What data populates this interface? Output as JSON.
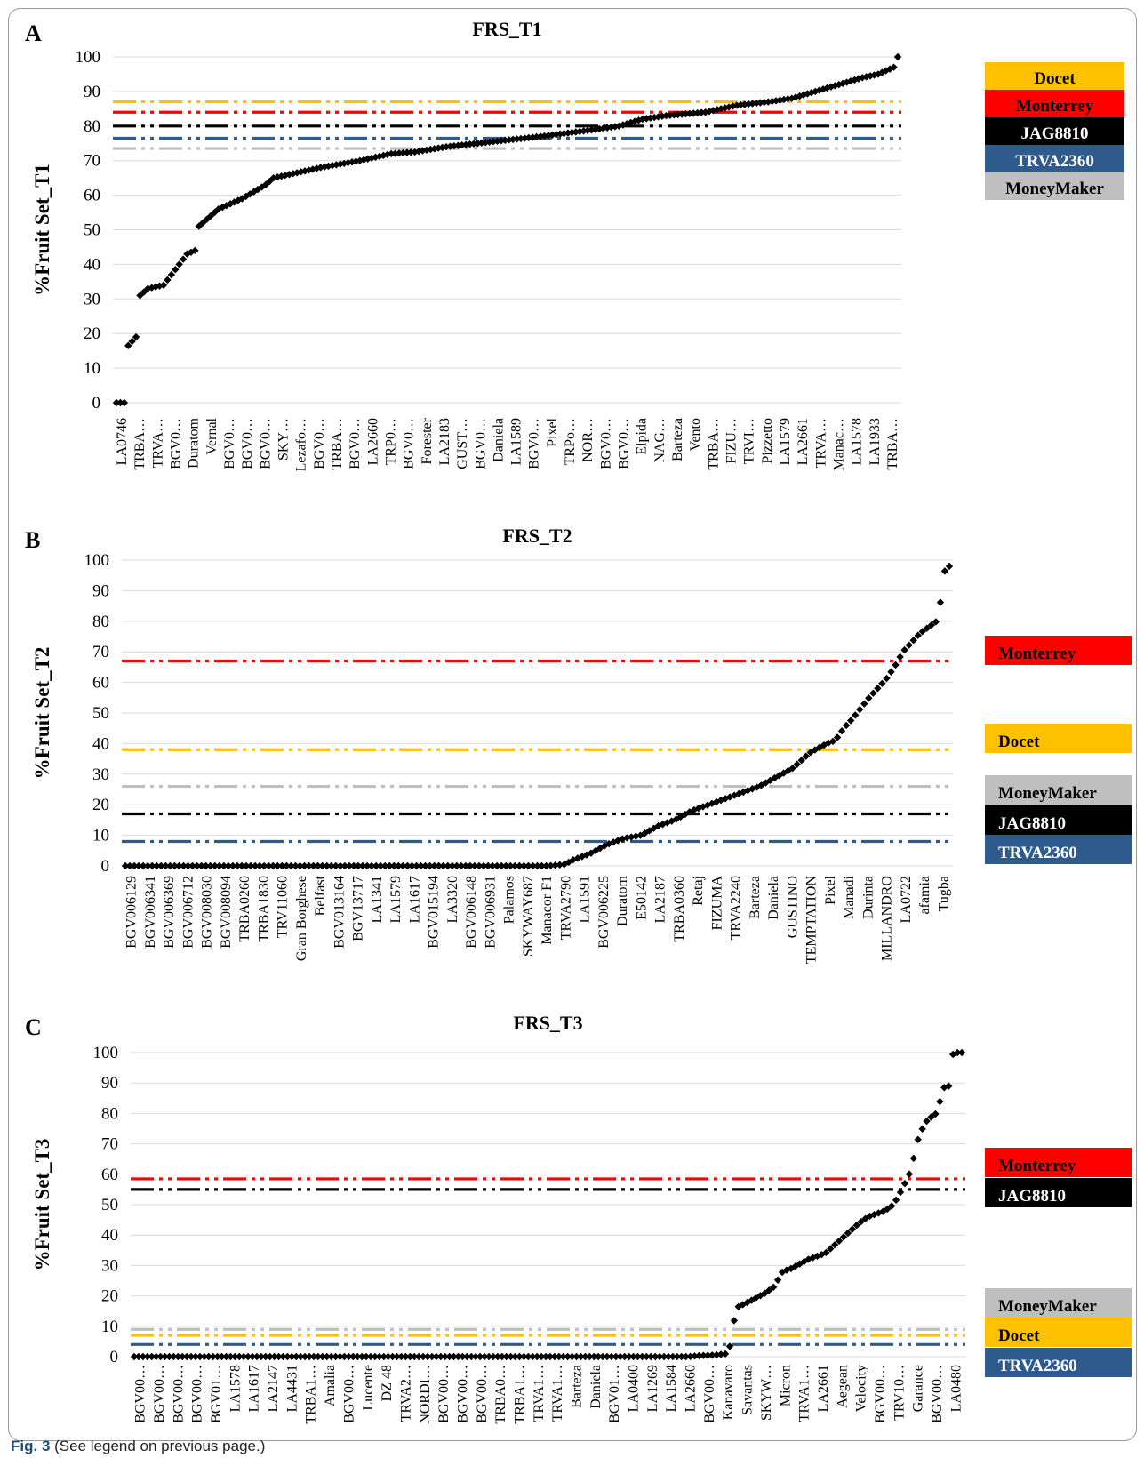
{
  "caption": {
    "label": "Fig. 3",
    "text": "(See legend on previous page.)"
  },
  "colors": {
    "Docet": "#FFC000",
    "Monterrey": "#FF0000",
    "JAG8810": "#000000",
    "TRVA2360": "#2E5A8E",
    "MoneyMaker": "#BFBFBF",
    "points": "#000000"
  },
  "chart_data": [
    {
      "panel": "A",
      "type": "scatter",
      "title": "FRS_T1",
      "ylabel": "%Fruit Set_T1",
      "ylim": [
        0,
        100
      ],
      "yticks": [
        0,
        10,
        20,
        30,
        40,
        50,
        60,
        70,
        80,
        90,
        100
      ],
      "n_points": 200,
      "curve_knots": [
        [
          0,
          0
        ],
        [
          2,
          0
        ],
        [
          3,
          16.5
        ],
        [
          5,
          19
        ],
        [
          6,
          31
        ],
        [
          8,
          33
        ],
        [
          12,
          34
        ],
        [
          18,
          43
        ],
        [
          20,
          44
        ],
        [
          21,
          51
        ],
        [
          23,
          53
        ],
        [
          26,
          56
        ],
        [
          32,
          59
        ],
        [
          38,
          63
        ],
        [
          40,
          65
        ],
        [
          44,
          66
        ],
        [
          52,
          68
        ],
        [
          62,
          70
        ],
        [
          70,
          72
        ],
        [
          76,
          72.5
        ],
        [
          84,
          74
        ],
        [
          92,
          75
        ],
        [
          100,
          76
        ],
        [
          108,
          77
        ],
        [
          115,
          78
        ],
        [
          122,
          79
        ],
        [
          128,
          80
        ],
        [
          134,
          82
        ],
        [
          140,
          83
        ],
        [
          150,
          84
        ],
        [
          158,
          86
        ],
        [
          166,
          87
        ],
        [
          172,
          88
        ],
        [
          178,
          90
        ],
        [
          184,
          92
        ],
        [
          190,
          94
        ],
        [
          194,
          95
        ],
        [
          196,
          96
        ],
        [
          198,
          97
        ],
        [
          199,
          100
        ]
      ],
      "categories": [
        "LA0746",
        "TRBA…",
        "TRVA…",
        "BGV0…",
        "Duratom",
        "Vernal",
        "BGV0…",
        "BGV0…",
        "BGV0…",
        "SKY…",
        "Lezafo…",
        "BGV0…",
        "TRBA…",
        "BGV0…",
        "LA2660",
        "TRP0…",
        "BGV0…",
        "Forester",
        "LA2183",
        "GUST…",
        "BGV0…",
        "Daniela",
        "LA1589",
        "BGV0…",
        "Pixel",
        "TRPo…",
        "NOR…",
        "BGV0…",
        "BGV0…",
        "Elpida",
        "NAG…",
        "Barteza",
        "Vento",
        "TRBA…",
        "FIZU…",
        "TRVI…",
        "Pizzetto",
        "LA1579",
        "LA2661",
        "TRVA…",
        "Manac…",
        "LA1578",
        "LA1933",
        "TRBA…"
      ],
      "reference_lines": [
        {
          "name": "Docet",
          "value": 87
        },
        {
          "name": "Monterrey",
          "value": 84
        },
        {
          "name": "JAG8810",
          "value": 80
        },
        {
          "name": "TRVA2360",
          "value": 76.5
        },
        {
          "name": "MoneyMaker",
          "value": 73.5
        }
      ],
      "legend": [
        {
          "name": "Docet",
          "fg": "#000000"
        },
        {
          "name": "Monterrey",
          "fg": "#000000"
        },
        {
          "name": "JAG8810",
          "fg": "#ffffff"
        },
        {
          "name": "TRVA2360",
          "fg": "#ffffff"
        },
        {
          "name": "MoneyMaker",
          "fg": "#000000"
        }
      ]
    },
    {
      "panel": "B",
      "type": "scatter",
      "title": "FRS_T2",
      "ylabel": "%Fruit Set_T2",
      "ylim": [
        0,
        100
      ],
      "yticks": [
        0,
        10,
        20,
        30,
        40,
        50,
        60,
        70,
        80,
        90,
        100
      ],
      "n_points": 185,
      "curve_knots": [
        [
          0,
          0
        ],
        [
          100,
          0
        ],
        [
          104,
          0.5
        ],
        [
          106,
          2
        ],
        [
          110,
          4
        ],
        [
          114,
          7
        ],
        [
          118,
          9
        ],
        [
          122,
          10
        ],
        [
          126,
          13
        ],
        [
          130,
          15
        ],
        [
          134,
          18
        ],
        [
          138,
          20
        ],
        [
          142,
          22
        ],
        [
          146,
          24
        ],
        [
          150,
          26
        ],
        [
          154,
          29
        ],
        [
          158,
          32
        ],
        [
          162,
          37
        ],
        [
          166,
          40
        ],
        [
          168,
          41
        ],
        [
          170,
          45
        ],
        [
          172,
          48
        ],
        [
          176,
          55
        ],
        [
          180,
          61
        ],
        [
          182,
          65
        ],
        [
          184,
          70
        ],
        [
          186,
          73
        ],
        [
          188,
          76
        ],
        [
          190,
          78
        ],
        [
          192,
          80
        ],
        [
          193,
          87
        ],
        [
          194,
          97
        ],
        [
          195,
          98
        ]
      ],
      "categories": [
        "BGV006129",
        "BGV006341",
        "BGV006369",
        "BGV006712",
        "BGV008030",
        "BGV008094",
        "TRBA0260",
        "TRBA1830",
        "TRV11060",
        "Gran Borghese",
        "Belfast",
        "BGV013164",
        "BGV13717",
        "LA1341",
        "LA1579",
        "LA1617",
        "BGV015194",
        "LA3320",
        "BGV006148",
        "BGV006931",
        "Palamos",
        "SKYWAY687",
        "Manacor F1",
        "TRVA2790",
        "LA1591",
        "BGV006225",
        "Duratom",
        "E50142",
        "LA2187",
        "TRBA0360",
        "Retaj",
        "FIZUMA",
        "TRVA2240",
        "Barteza",
        "Daniela",
        "GUSTINO",
        "TEMPTATION",
        "Pixel",
        "Manadi",
        "Durinta",
        "MILLANDRO",
        "LA0722",
        "afamia",
        "Tugba"
      ],
      "reference_lines": [
        {
          "name": "Monterrey",
          "value": 67
        },
        {
          "name": "Docet",
          "value": 38
        },
        {
          "name": "MoneyMaker",
          "value": 26
        },
        {
          "name": "JAG8810",
          "value": 17
        },
        {
          "name": "TRVA2360",
          "value": 8
        }
      ],
      "legend": [
        {
          "name": "Monterrey",
          "fg": "#000000"
        },
        {
          "name": "Docet",
          "fg": "#000000"
        },
        {
          "name": "MoneyMaker",
          "fg": "#000000"
        },
        {
          "name": "JAG8810",
          "fg": "#ffffff"
        },
        {
          "name": "TRVA2360",
          "fg": "#ffffff"
        }
      ]
    },
    {
      "panel": "C",
      "type": "scatter",
      "title": "FRS_T3",
      "ylabel": "%Fruit Set_T3",
      "ylim": [
        0,
        100
      ],
      "yticks": [
        0,
        10,
        20,
        30,
        40,
        50,
        60,
        70,
        80,
        90,
        100
      ],
      "n_points": 190,
      "curve_knots": [
        [
          0,
          0
        ],
        [
          130,
          0
        ],
        [
          132,
          0.3
        ],
        [
          136,
          0.5
        ],
        [
          139,
          1
        ],
        [
          140,
          5
        ],
        [
          141,
          16
        ],
        [
          144,
          18
        ],
        [
          148,
          21
        ],
        [
          150,
          23
        ],
        [
          152,
          28
        ],
        [
          154,
          29
        ],
        [
          158,
          32
        ],
        [
          162,
          34
        ],
        [
          166,
          39
        ],
        [
          170,
          44
        ],
        [
          172,
          46
        ],
        [
          176,
          48
        ],
        [
          178,
          50
        ],
        [
          180,
          55
        ],
        [
          182,
          61
        ],
        [
          184,
          73
        ],
        [
          186,
          78
        ],
        [
          188,
          80
        ],
        [
          190,
          89
        ],
        [
          191,
          89
        ],
        [
          192,
          100
        ],
        [
          194,
          100
        ]
      ],
      "categories": [
        "BGV00…",
        "BGV00…",
        "BGV00…",
        "BGV00…",
        "BGV01…",
        "LA1578",
        "LA1617",
        "LA2147",
        "LA4431",
        "TRBA1…",
        "Amalia",
        "BGV00…",
        "Lucente",
        "DZ 48",
        "TRVA2…",
        "NORDI…",
        "BGV00…",
        "BGV00…",
        "BGV00…",
        "TRBA0…",
        "TRBA1…",
        "TRVA1…",
        "TRVA1…",
        "Barteza",
        "Daniela",
        "BGV01…",
        "LA0400",
        "LA1269",
        "LA1584",
        "LA2660",
        "BGV00…",
        "Kanavaro",
        "Savantas",
        "SKYW…",
        "Micron",
        "TRVA1…",
        "LA2661",
        "Aegean",
        "Velocity",
        "BGV00…",
        "TRV10…",
        "Garance",
        "BGV00…",
        "LA0480"
      ],
      "reference_lines": [
        {
          "name": "Monterrey",
          "value": 58.5
        },
        {
          "name": "JAG8810",
          "value": 55
        },
        {
          "name": "MoneyMaker",
          "value": 9
        },
        {
          "name": "Docet",
          "value": 7
        },
        {
          "name": "TRVA2360",
          "value": 4
        }
      ],
      "legend": [
        {
          "name": "Monterrey",
          "fg": "#000000"
        },
        {
          "name": "JAG8810",
          "fg": "#ffffff"
        },
        {
          "name": "MoneyMaker",
          "fg": "#000000"
        },
        {
          "name": "Docet",
          "fg": "#000000"
        },
        {
          "name": "TRVA2360",
          "fg": "#ffffff"
        }
      ]
    }
  ]
}
